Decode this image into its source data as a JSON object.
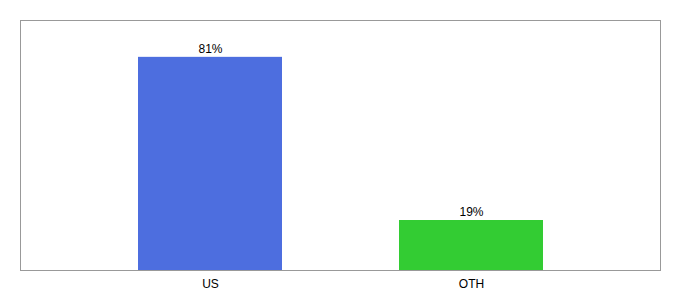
{
  "chart_data": {
    "type": "bar",
    "categories": [
      "US",
      "OTH"
    ],
    "values": [
      81,
      19
    ],
    "value_labels": [
      "81%",
      "19%"
    ],
    "colors": [
      "#4d6edf",
      "#33cc33"
    ],
    "ylim": [
      0,
      95
    ],
    "data_labels": true,
    "tick_labels": "x"
  }
}
